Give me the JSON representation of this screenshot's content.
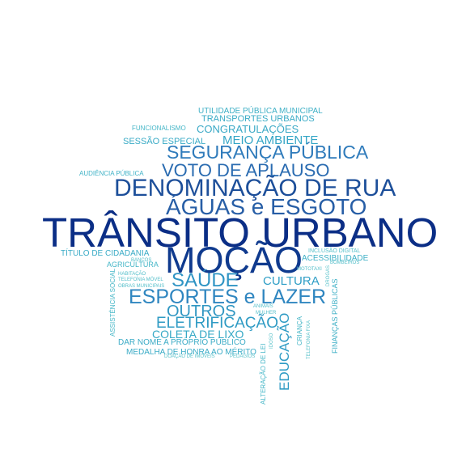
{
  "words": [
    {
      "text": "TRÂNSITO URBANO",
      "color": "#0b2e86"
    },
    {
      "text": "MOÇÃO",
      "color": "#0f3a8e"
    },
    {
      "text": "DENOMINAÇÃO DE RUA",
      "color": "#1d4f9a"
    },
    {
      "text": "ÁGUAS e ESGOTO",
      "color": "#275ea6"
    },
    {
      "text": "VOTO DE APLAUSO",
      "color": "#2b6cb1"
    },
    {
      "text": "SEGURANÇA PÚBLICA",
      "color": "#2f7bbb"
    },
    {
      "text": "ESPORTES e LAZER",
      "color": "#2f86c0"
    },
    {
      "text": "SAÚDE",
      "color": "#2f94c4"
    },
    {
      "text": "ELETRIFICAÇÃO",
      "color": "#2f9bc4"
    },
    {
      "text": "OUTROS",
      "color": "#2f96c2"
    },
    {
      "text": "CULTURA",
      "color": "#2f9ec6"
    },
    {
      "text": "MEIO AMBIENTE",
      "color": "#34a6c6"
    },
    {
      "text": "COLETA DE LIXO",
      "color": "#36a9c6"
    },
    {
      "text": "EDUCAÇÃO",
      "color": "#2f9bc4"
    },
    {
      "text": "CONGRATULAÇÕES",
      "color": "#3aa9c6"
    },
    {
      "text": "TRANSPORTES URBANOS",
      "color": "#3aabc6"
    },
    {
      "text": "SESSÃO ESPECIAL",
      "color": "#3aabc6"
    },
    {
      "text": "UTILIDADE PÚBLICA MUNICIPAL",
      "color": "#3fb0c6"
    },
    {
      "text": "DAR NOME A PRÓPRIO PÚBLICO",
      "color": "#3aabc6"
    },
    {
      "text": "MEDALHA DE HONRA AO MÉRITO",
      "color": "#3aabc6"
    },
    {
      "text": "TÍTULO DE CIDADANIA",
      "color": "#3aabc6"
    },
    {
      "text": "AUDIÊNCIA PÚBLICA",
      "color": "#41b3c7"
    },
    {
      "text": "FUNCIONALISMO",
      "color": "#45b6c7"
    },
    {
      "text": "ACESSIBILIDADE",
      "color": "#3fb0c6"
    },
    {
      "text": "AGRICULTURA",
      "color": "#45b6c7"
    },
    {
      "text": "FINANÇAS PÚBLICAS",
      "color": "#3fb0c6"
    },
    {
      "text": "ASSISTÊNCIA SOCIAL",
      "color": "#45b6c7"
    },
    {
      "text": "ALTERAÇÃO DE LEI",
      "color": "#45b6c7"
    },
    {
      "text": "CRIANÇA",
      "color": "#45b6c7"
    },
    {
      "text": "INCLUSÃO DIGITAL",
      "color": "#52bec9"
    },
    {
      "text": "MOTOTAXI",
      "color": "#52bec9"
    },
    {
      "text": "BOMBEIROS",
      "color": "#52bec9"
    },
    {
      "text": "BANCOS",
      "color": "#52bec9"
    },
    {
      "text": "HABITAÇÃO",
      "color": "#52bec9"
    },
    {
      "text": "TELEFONIA MÓVEL",
      "color": "#52bec9"
    },
    {
      "text": "OBRAS MUNICIPAIS",
      "color": "#52bec9"
    },
    {
      "text": "ANIMAIS",
      "color": "#52bec9"
    },
    {
      "text": "MULHER",
      "color": "#52bec9"
    },
    {
      "text": "DOAÇÃO DE IMÓVEIS",
      "color": "#5ac2ca"
    },
    {
      "text": "PEDÁGIOS",
      "color": "#5ac2ca"
    },
    {
      "text": "IDOSO",
      "color": "#5ac2ca"
    },
    {
      "text": "TELEFONIA FIXA",
      "color": "#5ac2ca"
    },
    {
      "text": "DROGAS",
      "color": "#5ac2ca"
    }
  ]
}
